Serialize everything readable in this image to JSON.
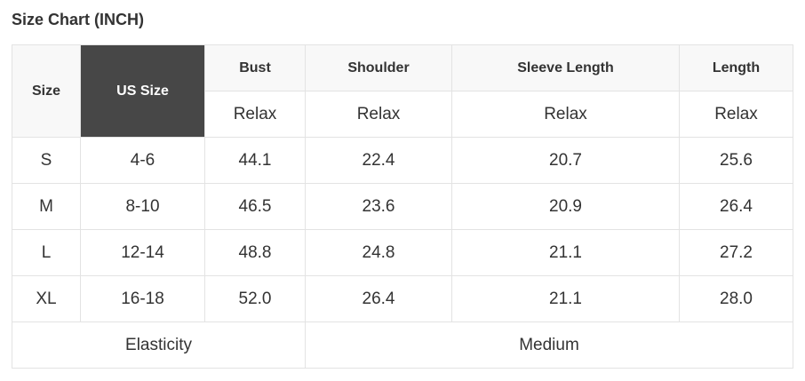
{
  "title": "Size Chart (INCH)",
  "headers": {
    "size": "Size",
    "us_size": "US Size",
    "cols": [
      "Bust",
      "Shoulder",
      "Sleeve Length",
      "Length"
    ],
    "sub": [
      "Relax",
      "Relax",
      "Relax",
      "Relax"
    ]
  },
  "rows": [
    [
      "S",
      "4-6",
      "44.1",
      "22.4",
      "20.7",
      "25.6"
    ],
    [
      "M",
      "8-10",
      "46.5",
      "23.6",
      "20.9",
      "26.4"
    ],
    [
      "L",
      "12-14",
      "48.8",
      "24.8",
      "21.1",
      "27.2"
    ],
    [
      "XL",
      "16-18",
      "52.0",
      "26.4",
      "21.1",
      "28.0"
    ]
  ],
  "footer": {
    "label": "Elasticity",
    "value": "Medium"
  },
  "colors": {
    "header_dark": "#474747",
    "header_bg": "#f8f8f8",
    "border": "#e3e3e3"
  }
}
